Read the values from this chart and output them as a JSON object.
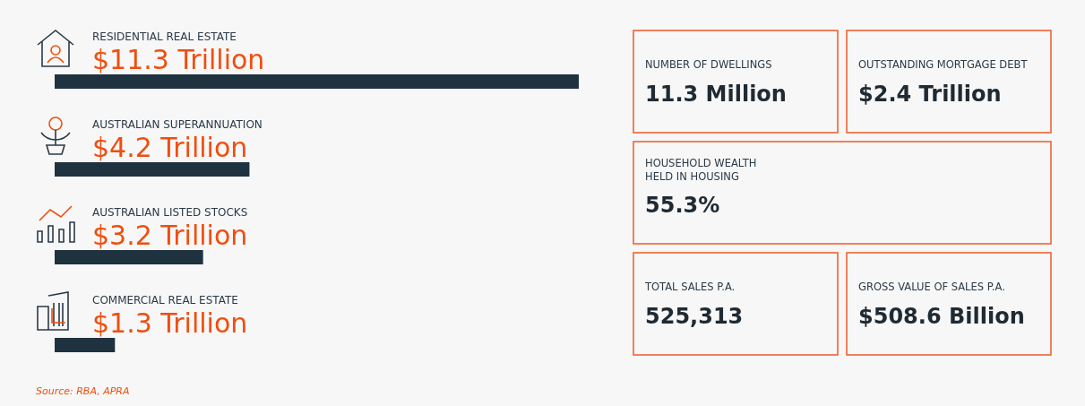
{
  "chart_data": [
    {
      "type": "bar",
      "orientation": "horizontal",
      "categories": [
        "RESIDENTIAL REAL ESTATE",
        "AUSTRALIAN SUPERANNUATION",
        "AUSTRALIAN LISTED STOCKS",
        "COMMERCIAL REAL ESTATE"
      ],
      "values": [
        11.3,
        4.2,
        3.2,
        1.3
      ],
      "value_labels": [
        "$11.3 Trillion",
        "$4.2 Trillion",
        "$3.2 Trillion",
        "$1.3 Trillion"
      ],
      "color": "#1f3240",
      "annotations": [
        "Source: RBA, APRA"
      ]
    },
    {
      "type": "other",
      "categories": [
        "NUMBER OF DWELLINGS",
        "OUTSTANDING MORTGAGE DEBT",
        "HOUSEHOLD WEALTH\nHELD IN HOUSING",
        "TOTAL SALES P.A.",
        "GROSS VALUE OF SALES P.A."
      ],
      "value_labels": [
        "11.3 Million",
        "$2.4 Trillion",
        "55.3%",
        "525,313",
        "$508.6 Billion"
      ],
      "color": "#f05a28"
    }
  ]
}
